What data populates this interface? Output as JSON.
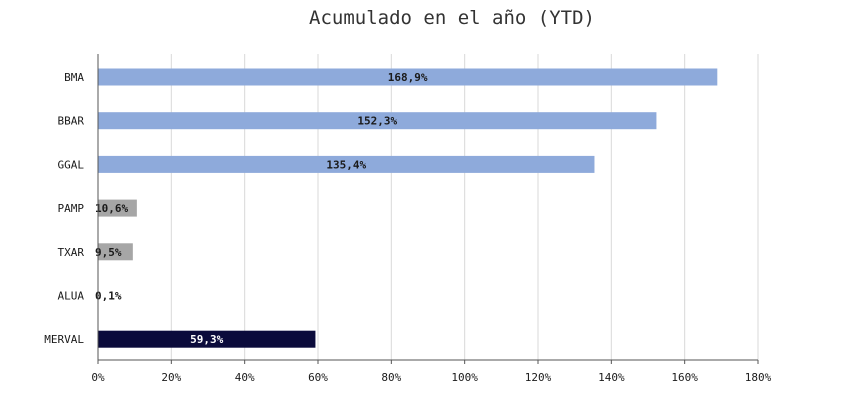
{
  "chart_data": {
    "type": "bar",
    "orientation": "horizontal",
    "title": "Acumulado en el año (YTD)",
    "categories": [
      "BMA",
      "BBAR",
      "GGAL",
      "PAMP",
      "TXAR",
      "ALUA",
      "MERVAL"
    ],
    "values": [
      168.9,
      152.3,
      135.4,
      10.6,
      9.5,
      0.1,
      59.3
    ],
    "data_labels": [
      "168,9%",
      "152,3%",
      "135,4%",
      "10,6%",
      "9,5%",
      "0,1%",
      "59,3%"
    ],
    "bar_colors": [
      "#8eaadb",
      "#8eaadb",
      "#8eaadb",
      "#a6a6a6",
      "#a6a6a6",
      "#a6a6a6",
      "#0b0b3b"
    ],
    "label_colors": [
      "#1a1a1a",
      "#1a1a1a",
      "#1a1a1a",
      "#1a1a1a",
      "#1a1a1a",
      "#1a1a1a",
      "#ffffff"
    ],
    "xlim": [
      0,
      180
    ],
    "x_ticks": [
      0,
      20,
      40,
      60,
      80,
      100,
      120,
      140,
      160,
      180
    ],
    "x_tick_labels": [
      "0%",
      "20%",
      "40%",
      "60%",
      "80%",
      "100%",
      "120%",
      "140%",
      "160%",
      "180%"
    ],
    "grid": true,
    "legend": false,
    "xlabel": "",
    "ylabel": ""
  }
}
